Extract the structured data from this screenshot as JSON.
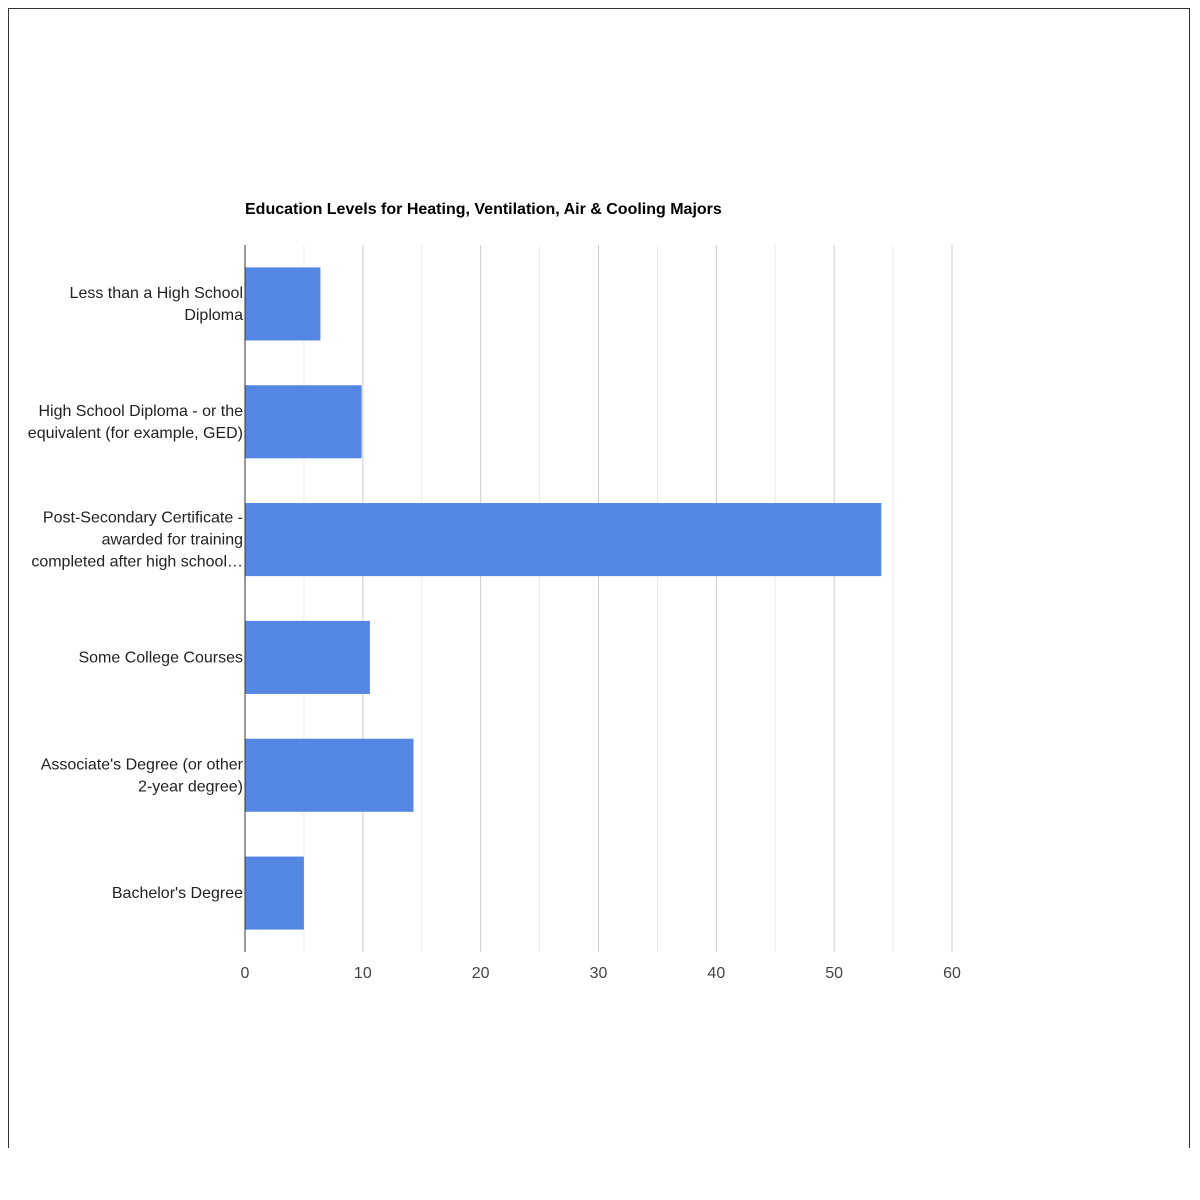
{
  "chart_data": {
    "type": "bar",
    "orientation": "horizontal",
    "title": "Education Levels for Heating, Ventilation, Air & Cooling Majors",
    "xlabel": "",
    "ylabel": "",
    "categories": [
      "Less than a High School Diploma",
      "High School Diploma - or the equivalent (for example, GED)",
      "Post-Secondary Certificate - awarded for training completed after high school…",
      "Some College Courses",
      "Associate's Degree (or other 2-year degree)",
      "Bachelor's Degree"
    ],
    "category_label_lines": [
      [
        "Less than a High School",
        "Diploma"
      ],
      [
        "High School Diploma - or the",
        "equivalent (for example, GED)"
      ],
      [
        "Post-Secondary Certificate -",
        "awarded for training",
        "completed after high school…"
      ],
      [
        "Some College Courses"
      ],
      [
        "Associate's Degree (or other",
        "2-year degree)"
      ],
      [
        "Bachelor's Degree"
      ]
    ],
    "values": [
      6.4,
      9.9,
      54.0,
      10.6,
      14.3,
      5.0
    ],
    "xlim": [
      0,
      60
    ],
    "xticks": [
      "0",
      "10",
      "20",
      "30",
      "40",
      "50",
      "60"
    ],
    "grid": true,
    "legend": "none",
    "colors": {
      "bar": "#5487E4",
      "major_grid": "#cccccc",
      "minor_grid": "#ebebeb",
      "axis": "#333333"
    }
  }
}
